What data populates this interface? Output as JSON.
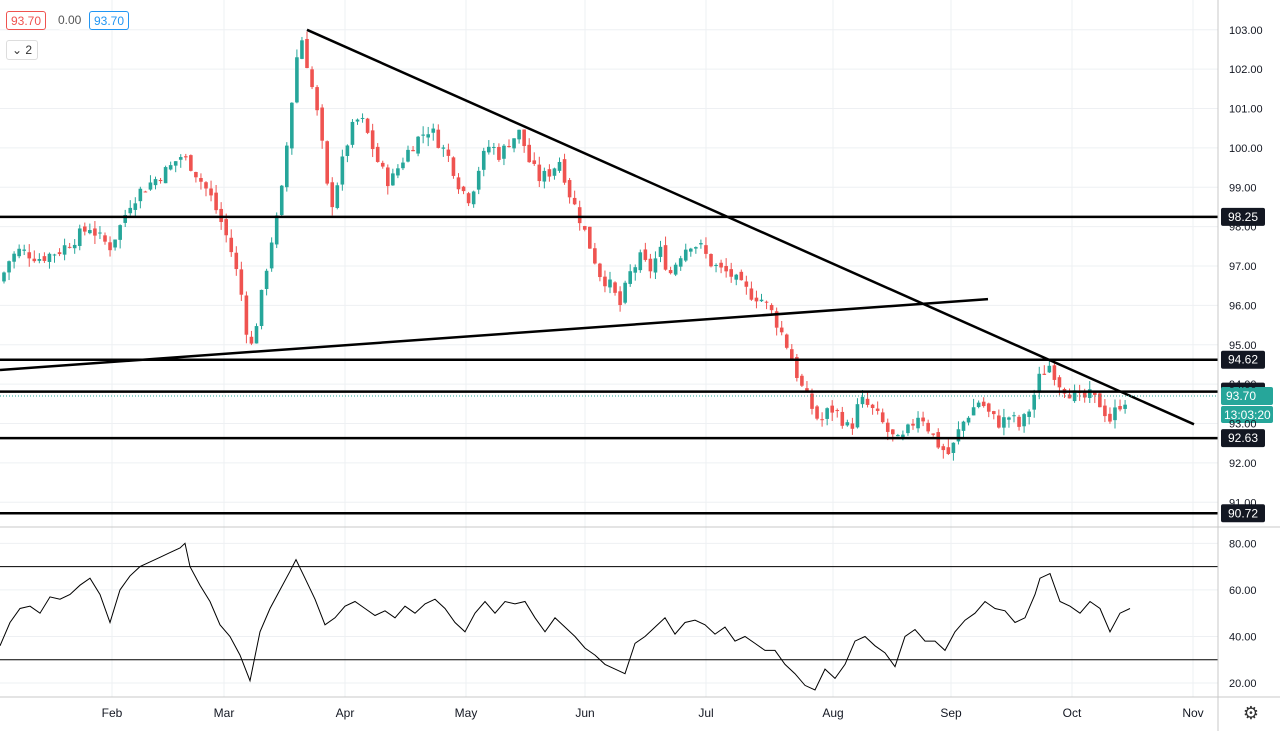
{
  "legend": {
    "open": "93.70",
    "change": "0.00",
    "close": "93.70"
  },
  "indicators_count": "2",
  "settings_icon": "gear-icon",
  "colors": {
    "up": "#26a69a",
    "down": "#ef5350",
    "line": "#000000",
    "grid": "#eef0f3"
  },
  "chart_data": [
    {
      "type": "candlestick",
      "price_axis": {
        "min": 90.6,
        "max": 103.3,
        "ticks": [
          "103.00",
          "102.00",
          "101.00",
          "100.00",
          "99.00",
          "98.00",
          "97.00",
          "96.00",
          "95.00",
          "94.00",
          "93.00",
          "92.00",
          "91.00"
        ]
      },
      "time_axis": {
        "labels": [
          "Feb",
          "Mar",
          "Apr",
          "May",
          "Jun",
          "Jul",
          "Aug",
          "Sep",
          "Oct",
          "Nov"
        ]
      },
      "levels": [
        "98.25",
        "94.62",
        "93.81",
        "92.63",
        "90.72"
      ],
      "current": {
        "price": "93.70",
        "countdown": "13:03:20"
      },
      "close_path": [
        [
          0,
          96.6
        ],
        [
          10,
          97.2
        ],
        [
          20,
          97.4
        ],
        [
          30,
          97.3
        ],
        [
          40,
          97.2
        ],
        [
          50,
          97.3
        ],
        [
          60,
          97.4
        ],
        [
          70,
          97.6
        ],
        [
          80,
          97.8
        ],
        [
          90,
          98.0
        ],
        [
          100,
          97.7
        ],
        [
          110,
          97.5
        ],
        [
          120,
          98.0
        ],
        [
          130,
          98.6
        ],
        [
          140,
          98.9
        ],
        [
          150,
          99.1
        ],
        [
          160,
          99.3
        ],
        [
          170,
          99.5
        ],
        [
          180,
          99.8
        ],
        [
          190,
          99.6
        ],
        [
          200,
          99.2
        ],
        [
          210,
          98.8
        ],
        [
          220,
          98.2
        ],
        [
          230,
          97.5
        ],
        [
          240,
          96.5
        ],
        [
          250,
          94.8
        ],
        [
          260,
          96.0
        ],
        [
          270,
          97.5
        ],
        [
          280,
          98.5
        ],
        [
          290,
          100.8
        ],
        [
          300,
          103.0
        ],
        [
          310,
          101.8
        ],
        [
          320,
          100.5
        ],
        [
          330,
          98.4
        ],
        [
          340,
          99.4
        ],
        [
          350,
          100.4
        ],
        [
          360,
          100.8
        ],
        [
          370,
          100.2
        ],
        [
          380,
          99.5
        ],
        [
          390,
          99.1
        ],
        [
          400,
          99.6
        ],
        [
          410,
          100.0
        ],
        [
          420,
          100.3
        ],
        [
          430,
          100.5
        ],
        [
          440,
          100.1
        ],
        [
          450,
          99.7
        ],
        [
          460,
          99.0
        ],
        [
          470,
          98.7
        ],
        [
          480,
          99.6
        ],
        [
          490,
          100.1
        ],
        [
          500,
          99.8
        ],
        [
          510,
          100.2
        ],
        [
          520,
          100.4
        ],
        [
          530,
          99.6
        ],
        [
          540,
          99.2
        ],
        [
          550,
          99.4
        ],
        [
          560,
          99.7
        ],
        [
          570,
          98.8
        ],
        [
          580,
          98.2
        ],
        [
          590,
          97.5
        ],
        [
          600,
          96.8
        ],
        [
          610,
          96.5
        ],
        [
          620,
          96.0
        ],
        [
          630,
          96.8
        ],
        [
          640,
          97.2
        ],
        [
          650,
          96.9
        ],
        [
          660,
          97.4
        ],
        [
          670,
          96.8
        ],
        [
          680,
          97.3
        ],
        [
          690,
          97.6
        ],
        [
          700,
          97.5
        ],
        [
          710,
          97.1
        ],
        [
          720,
          96.9
        ],
        [
          730,
          96.8
        ],
        [
          740,
          96.5
        ],
        [
          750,
          96.3
        ],
        [
          760,
          96.2
        ],
        [
          770,
          95.9
        ],
        [
          780,
          95.4
        ],
        [
          790,
          94.8
        ],
        [
          800,
          94.0
        ],
        [
          810,
          93.5
        ],
        [
          820,
          93.0
        ],
        [
          830,
          93.4
        ],
        [
          840,
          93.2
        ],
        [
          850,
          92.8
        ],
        [
          860,
          93.6
        ],
        [
          870,
          93.4
        ],
        [
          880,
          93.1
        ],
        [
          890,
          92.7
        ],
        [
          900,
          92.5
        ],
        [
          910,
          92.9
        ],
        [
          920,
          93.3
        ],
        [
          930,
          92.8
        ],
        [
          940,
          92.4
        ],
        [
          950,
          92.2
        ],
        [
          960,
          92.9
        ],
        [
          970,
          93.3
        ],
        [
          980,
          93.6
        ],
        [
          990,
          93.2
        ],
        [
          1000,
          93.0
        ],
        [
          1010,
          93.2
        ],
        [
          1020,
          92.9
        ],
        [
          1030,
          93.4
        ],
        [
          1040,
          94.2
        ],
        [
          1050,
          94.5
        ],
        [
          1060,
          94.0
        ],
        [
          1070,
          93.8
        ],
        [
          1080,
          93.6
        ],
        [
          1090,
          93.7
        ],
        [
          1100,
          93.5
        ],
        [
          1110,
          93.1
        ],
        [
          1120,
          93.5
        ],
        [
          1130,
          93.7
        ]
      ],
      "drawings": [
        {
          "kind": "trendline",
          "from": [
            307,
            103.0
          ],
          "to": [
            1194,
            92.98
          ]
        },
        {
          "kind": "trendline",
          "from": [
            0,
            94.36
          ],
          "to": [
            988,
            96.16
          ]
        }
      ]
    },
    {
      "type": "line",
      "name": "oscillator",
      "y_axis": {
        "min": 14,
        "max": 84,
        "ticks": [
          "80.00",
          "60.00",
          "40.00",
          "20.00"
        ]
      },
      "bands": [
        70,
        30
      ],
      "points": [
        [
          0,
          36
        ],
        [
          10,
          46
        ],
        [
          20,
          52
        ],
        [
          30,
          53
        ],
        [
          40,
          50
        ],
        [
          50,
          57
        ],
        [
          60,
          56
        ],
        [
          70,
          58
        ],
        [
          80,
          62
        ],
        [
          90,
          65
        ],
        [
          100,
          58
        ],
        [
          110,
          46
        ],
        [
          120,
          60
        ],
        [
          130,
          66
        ],
        [
          140,
          70
        ],
        [
          150,
          72
        ],
        [
          160,
          74
        ],
        [
          170,
          76
        ],
        [
          180,
          78
        ],
        [
          185,
          80
        ],
        [
          190,
          70
        ],
        [
          200,
          62
        ],
        [
          210,
          55
        ],
        [
          220,
          45
        ],
        [
          230,
          40
        ],
        [
          240,
          32
        ],
        [
          250,
          21
        ],
        [
          260,
          42
        ],
        [
          270,
          52
        ],
        [
          280,
          60
        ],
        [
          290,
          68
        ],
        [
          296,
          73
        ],
        [
          305,
          65
        ],
        [
          315,
          56
        ],
        [
          325,
          45
        ],
        [
          335,
          48
        ],
        [
          345,
          53
        ],
        [
          355,
          55
        ],
        [
          365,
          52
        ],
        [
          375,
          49
        ],
        [
          385,
          51
        ],
        [
          395,
          48
        ],
        [
          405,
          53
        ],
        [
          415,
          50
        ],
        [
          425,
          54
        ],
        [
          435,
          56
        ],
        [
          445,
          52
        ],
        [
          455,
          46
        ],
        [
          465,
          42
        ],
        [
          475,
          50
        ],
        [
          485,
          55
        ],
        [
          495,
          50
        ],
        [
          505,
          55
        ],
        [
          515,
          54
        ],
        [
          525,
          55
        ],
        [
          535,
          48
        ],
        [
          545,
          42
        ],
        [
          555,
          48
        ],
        [
          565,
          44
        ],
        [
          575,
          40
        ],
        [
          585,
          35
        ],
        [
          595,
          32
        ],
        [
          605,
          28
        ],
        [
          615,
          26
        ],
        [
          625,
          24
        ],
        [
          635,
          37
        ],
        [
          645,
          40
        ],
        [
          655,
          44
        ],
        [
          665,
          48
        ],
        [
          675,
          41
        ],
        [
          685,
          46
        ],
        [
          695,
          47
        ],
        [
          705,
          45
        ],
        [
          715,
          41
        ],
        [
          725,
          44
        ],
        [
          735,
          38
        ],
        [
          745,
          40
        ],
        [
          755,
          37
        ],
        [
          765,
          34
        ],
        [
          775,
          34
        ],
        [
          785,
          28
        ],
        [
          795,
          24
        ],
        [
          805,
          19
        ],
        [
          815,
          17
        ],
        [
          825,
          26
        ],
        [
          835,
          22
        ],
        [
          845,
          28
        ],
        [
          855,
          38
        ],
        [
          865,
          40
        ],
        [
          875,
          36
        ],
        [
          885,
          33
        ],
        [
          895,
          27
        ],
        [
          905,
          40
        ],
        [
          915,
          43
        ],
        [
          925,
          38
        ],
        [
          935,
          38
        ],
        [
          945,
          34
        ],
        [
          955,
          42
        ],
        [
          965,
          47
        ],
        [
          975,
          50
        ],
        [
          985,
          55
        ],
        [
          995,
          52
        ],
        [
          1005,
          51
        ],
        [
          1015,
          46
        ],
        [
          1025,
          48
        ],
        [
          1035,
          58
        ],
        [
          1040,
          65
        ],
        [
          1050,
          67
        ],
        [
          1060,
          55
        ],
        [
          1070,
          53
        ],
        [
          1080,
          50
        ],
        [
          1090,
          55
        ],
        [
          1100,
          52
        ],
        [
          1110,
          42
        ],
        [
          1120,
          50
        ],
        [
          1130,
          52
        ]
      ]
    }
  ]
}
